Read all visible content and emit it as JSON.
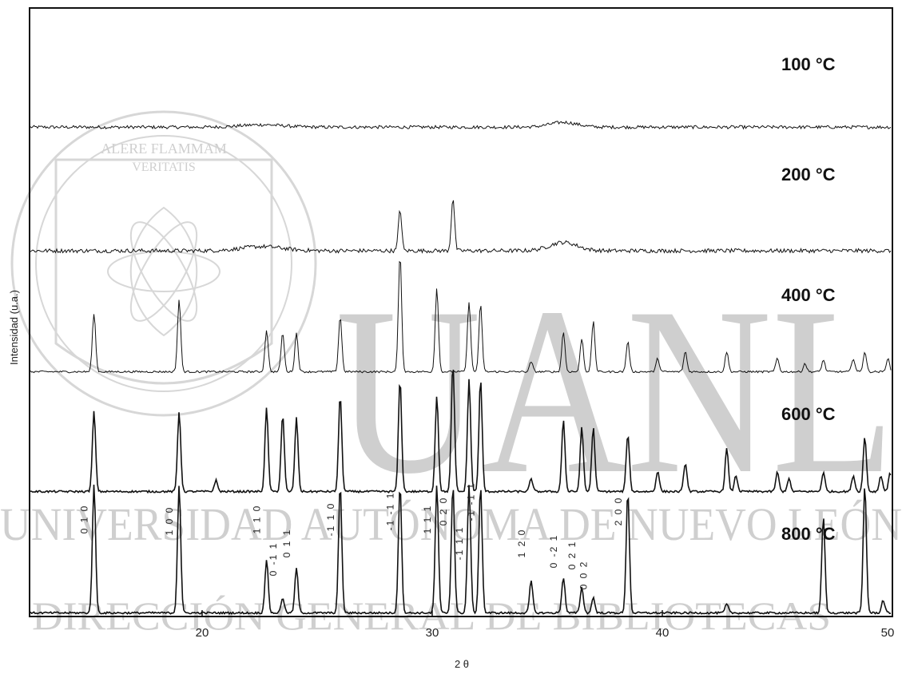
{
  "chart_data": {
    "type": "line",
    "title": "",
    "xlabel": "2 θ",
    "ylabel": "Intensidad (u.a.)",
    "xlim": [
      12.5,
      50
    ],
    "xticks": [
      "20",
      "30",
      "40",
      "50"
    ],
    "xtick_values": [
      20,
      30,
      40,
      50
    ],
    "grid": false,
    "series": [
      {
        "name": "100 °C",
        "amorphous_halo_center": 35.7,
        "peaks": []
      },
      {
        "name": "200 °C",
        "amorphous_halo_center": 35.7,
        "peaks": [
          {
            "x": 28.6,
            "y": 0.3
          },
          {
            "x": 30.9,
            "y": 0.38
          }
        ]
      },
      {
        "name": "400 °C",
        "peaks": [
          {
            "x": 15.3,
            "y": 0.35
          },
          {
            "x": 19.0,
            "y": 0.43
          },
          {
            "x": 22.8,
            "y": 0.25
          },
          {
            "x": 23.5,
            "y": 0.23
          },
          {
            "x": 24.1,
            "y": 0.23
          },
          {
            "x": 26.0,
            "y": 0.33
          },
          {
            "x": 28.6,
            "y": 0.7
          },
          {
            "x": 30.2,
            "y": 0.5
          },
          {
            "x": 31.6,
            "y": 0.42
          },
          {
            "x": 32.1,
            "y": 0.4
          },
          {
            "x": 34.3,
            "y": 0.06
          },
          {
            "x": 35.7,
            "y": 0.24
          },
          {
            "x": 36.5,
            "y": 0.2
          },
          {
            "x": 37.0,
            "y": 0.3
          },
          {
            "x": 38.5,
            "y": 0.18
          },
          {
            "x": 39.8,
            "y": 0.08
          },
          {
            "x": 41.0,
            "y": 0.12
          },
          {
            "x": 42.8,
            "y": 0.12
          },
          {
            "x": 45.0,
            "y": 0.08
          },
          {
            "x": 46.2,
            "y": 0.05
          },
          {
            "x": 47.0,
            "y": 0.07
          },
          {
            "x": 48.3,
            "y": 0.08
          },
          {
            "x": 48.8,
            "y": 0.12
          },
          {
            "x": 49.8,
            "y": 0.08
          }
        ]
      },
      {
        "name": "600 °C",
        "peaks": [
          {
            "x": 15.3,
            "y": 0.5
          },
          {
            "x": 19.0,
            "y": 0.5
          },
          {
            "x": 20.6,
            "y": 0.07
          },
          {
            "x": 22.8,
            "y": 0.52
          },
          {
            "x": 23.5,
            "y": 0.48
          },
          {
            "x": 24.1,
            "y": 0.46
          },
          {
            "x": 26.0,
            "y": 0.6
          },
          {
            "x": 28.6,
            "y": 0.7
          },
          {
            "x": 30.2,
            "y": 0.6
          },
          {
            "x": 30.9,
            "y": 0.8
          },
          {
            "x": 31.6,
            "y": 0.7
          },
          {
            "x": 32.1,
            "y": 0.7
          },
          {
            "x": 34.3,
            "y": 0.08
          },
          {
            "x": 35.7,
            "y": 0.45
          },
          {
            "x": 36.5,
            "y": 0.4
          },
          {
            "x": 37.0,
            "y": 0.4
          },
          {
            "x": 38.5,
            "y": 0.36
          },
          {
            "x": 39.8,
            "y": 0.13
          },
          {
            "x": 41.0,
            "y": 0.18
          },
          {
            "x": 42.8,
            "y": 0.27
          },
          {
            "x": 43.2,
            "y": 0.1
          },
          {
            "x": 45.0,
            "y": 0.12
          },
          {
            "x": 45.5,
            "y": 0.08
          },
          {
            "x": 47.0,
            "y": 0.12
          },
          {
            "x": 48.3,
            "y": 0.1
          },
          {
            "x": 48.8,
            "y": 0.34
          },
          {
            "x": 49.5,
            "y": 0.1
          },
          {
            "x": 49.9,
            "y": 0.12
          }
        ]
      },
      {
        "name": "800 °C",
        "peaks": [
          {
            "x": 15.3,
            "y": 1.0
          },
          {
            "x": 19.0,
            "y": 1.0
          },
          {
            "x": 22.8,
            "y": 0.42
          },
          {
            "x": 23.5,
            "y": 0.12
          },
          {
            "x": 24.1,
            "y": 0.35
          },
          {
            "x": 26.0,
            "y": 1.0
          },
          {
            "x": 28.6,
            "y": 1.0
          },
          {
            "x": 30.2,
            "y": 1.0
          },
          {
            "x": 30.9,
            "y": 1.0
          },
          {
            "x": 31.6,
            "y": 1.0
          },
          {
            "x": 32.1,
            "y": 1.0
          },
          {
            "x": 34.3,
            "y": 0.25
          },
          {
            "x": 35.7,
            "y": 0.28
          },
          {
            "x": 36.5,
            "y": 0.2
          },
          {
            "x": 37.0,
            "y": 0.12
          },
          {
            "x": 38.5,
            "y": 0.95
          },
          {
            "x": 42.8,
            "y": 0.07
          },
          {
            "x": 47.0,
            "y": 0.75
          },
          {
            "x": 48.8,
            "y": 1.0
          },
          {
            "x": 49.6,
            "y": 0.1
          }
        ]
      }
    ],
    "annotations": [
      {
        "text": "0 1 0",
        "x": 15.3
      },
      {
        "text": "1 0 0",
        "x": 19.0
      },
      {
        "text": "1 1 0",
        "x": 22.8
      },
      {
        "text": "0 -1 1",
        "x": 23.5
      },
      {
        "text": "0 1 1",
        "x": 24.1
      },
      {
        "text": "-1 1 0",
        "x": 26.0
      },
      {
        "text": "-1 -1 1",
        "x": 28.6
      },
      {
        "text": "1 1 1",
        "x": 30.2
      },
      {
        "text": "0 2 0",
        "x": 30.9
      },
      {
        "text": "-1 1 1",
        "x": 31.6
      },
      {
        "text": "-1 -1 1",
        "x": 32.1
      },
      {
        "text": "1 2 0",
        "x": 34.3
      },
      {
        "text": "0 -2 1",
        "x": 35.7
      },
      {
        "text": "0 2 1",
        "x": 36.5
      },
      {
        "text": "0 0 2",
        "x": 37.0
      },
      {
        "text": "2 0 0",
        "x": 38.5
      }
    ]
  },
  "watermark": {
    "motto_line1": "ALERE FLAMMAM",
    "motto_line2": "VERITATIS",
    "arc_text": "UNIVERSIDAD AUTÓNOMA DE NUEVO LEÓN",
    "big_letters": "UANL",
    "middle_line": "UNIVERSIDAD AUTÓNOMA DE NUEVO LEÓN",
    "bottom_line": "DIRECCIÓN GENERAL DE BIBLIOTECAS"
  }
}
